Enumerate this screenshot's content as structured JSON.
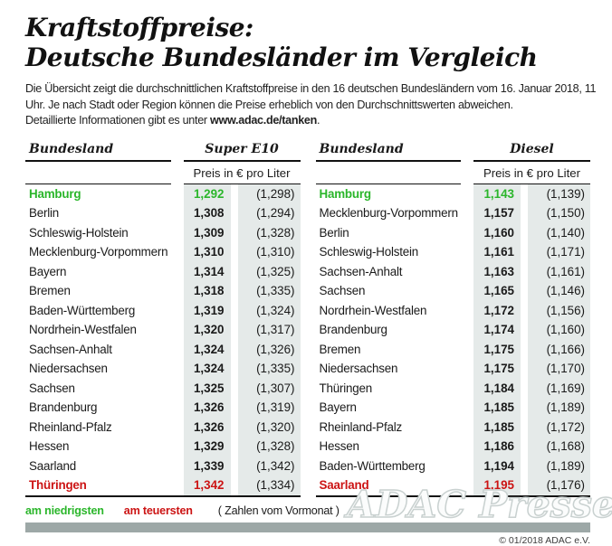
{
  "header": {
    "title_line1": "Kraftstoffpreise:",
    "title_line2": "Deutsche Bundesländer im Vergleich",
    "description_line1": "Die Übersicht zeigt die durchschnittlichen Kraftstoffpreise in den 16 deutschen Bundesländern vom 16. Januar 2018, 11",
    "description_line2": "Uhr. Je nach Stadt oder Region können die Preise erheblich von den Durchschnittswerten abweichen.",
    "description_line3_prefix": "Detaillierte Informationen gibt es unter ",
    "description_line3_link": "www.adac.de/tanken",
    "description_line3_suffix": "."
  },
  "tables": [
    {
      "fuel": "Super E10",
      "col_header": "Bundesland",
      "price_header": "Preis in € pro Liter",
      "rows": [
        {
          "name": "Hamburg",
          "price": "1,292",
          "prev": "(1,298)",
          "highlight": "lowest"
        },
        {
          "name": "Berlin",
          "price": "1,308",
          "prev": "(1,294)",
          "highlight": null
        },
        {
          "name": "Schleswig-Holstein",
          "price": "1,309",
          "prev": "(1,328)",
          "highlight": null
        },
        {
          "name": "Mecklenburg-Vorpommern",
          "price": "1,310",
          "prev": "(1,310)",
          "highlight": null
        },
        {
          "name": "Bayern",
          "price": "1,314",
          "prev": "(1,325)",
          "highlight": null
        },
        {
          "name": "Bremen",
          "price": "1,318",
          "prev": "(1,335)",
          "highlight": null
        },
        {
          "name": "Baden-Württemberg",
          "price": "1,319",
          "prev": "(1,324)",
          "highlight": null
        },
        {
          "name": "Nordrhein-Westfalen",
          "price": "1,320",
          "prev": "(1,317)",
          "highlight": null
        },
        {
          "name": "Sachsen-Anhalt",
          "price": "1,324",
          "prev": "(1,326)",
          "highlight": null
        },
        {
          "name": "Niedersachsen",
          "price": "1,324",
          "prev": "(1,335)",
          "highlight": null
        },
        {
          "name": "Sachsen",
          "price": "1,325",
          "prev": "(1,307)",
          "highlight": null
        },
        {
          "name": "Brandenburg",
          "price": "1,326",
          "prev": "(1,319)",
          "highlight": null
        },
        {
          "name": "Rheinland-Pfalz",
          "price": "1,326",
          "prev": "(1,320)",
          "highlight": null
        },
        {
          "name": "Hessen",
          "price": "1,329",
          "prev": "(1,328)",
          "highlight": null
        },
        {
          "name": "Saarland",
          "price": "1,339",
          "prev": "(1,342)",
          "highlight": null
        },
        {
          "name": "Thüringen",
          "price": "1,342",
          "prev": "(1,334)",
          "highlight": "highest"
        }
      ]
    },
    {
      "fuel": "Diesel",
      "col_header": "Bundesland",
      "price_header": "Preis in € pro Liter",
      "rows": [
        {
          "name": "Hamburg",
          "price": "1,143",
          "prev": "(1,139)",
          "highlight": "lowest"
        },
        {
          "name": "Mecklenburg-Vorpommern",
          "price": "1,157",
          "prev": "(1,150)",
          "highlight": null
        },
        {
          "name": "Berlin",
          "price": "1,160",
          "prev": "(1,140)",
          "highlight": null
        },
        {
          "name": "Schleswig-Holstein",
          "price": "1,161",
          "prev": "(1,171)",
          "highlight": null
        },
        {
          "name": "Sachsen-Anhalt",
          "price": "1,163",
          "prev": "(1,161)",
          "highlight": null
        },
        {
          "name": "Sachsen",
          "price": "1,165",
          "prev": "(1,146)",
          "highlight": null
        },
        {
          "name": "Nordrhein-Westfalen",
          "price": "1,172",
          "prev": "(1,156)",
          "highlight": null
        },
        {
          "name": "Brandenburg",
          "price": "1,174",
          "prev": "(1,160)",
          "highlight": null
        },
        {
          "name": "Bremen",
          "price": "1,175",
          "prev": "(1,166)",
          "highlight": null
        },
        {
          "name": "Niedersachsen",
          "price": "1,175",
          "prev": "(1,170)",
          "highlight": null
        },
        {
          "name": "Thüringen",
          "price": "1,184",
          "prev": "(1,169)",
          "highlight": null
        },
        {
          "name": "Bayern",
          "price": "1,185",
          "prev": "(1,189)",
          "highlight": null
        },
        {
          "name": "Rheinland-Pfalz",
          "price": "1,185",
          "prev": "(1,172)",
          "highlight": null
        },
        {
          "name": "Hessen",
          "price": "1,186",
          "prev": "(1,168)",
          "highlight": null
        },
        {
          "name": "Baden-Württemberg",
          "price": "1,194",
          "prev": "(1,189)",
          "highlight": null
        },
        {
          "name": "Saarland",
          "price": "1,195",
          "prev": "(1,176)",
          "highlight": "highest"
        }
      ]
    }
  ],
  "legend": {
    "lowest_label": "am niedrigsten",
    "highest_label": "am teuersten",
    "note": "( Zahlen vom Vormonat )"
  },
  "footer": {
    "copyright": "© 01/2018 ADAC e.V.",
    "watermark": "ADAC Presse"
  },
  "colors": {
    "lowest_green": "#2bb62b",
    "highest_red": "#cc1414",
    "stripe_bg": "#e5eae9",
    "footer_bar": "#9da8a7"
  }
}
